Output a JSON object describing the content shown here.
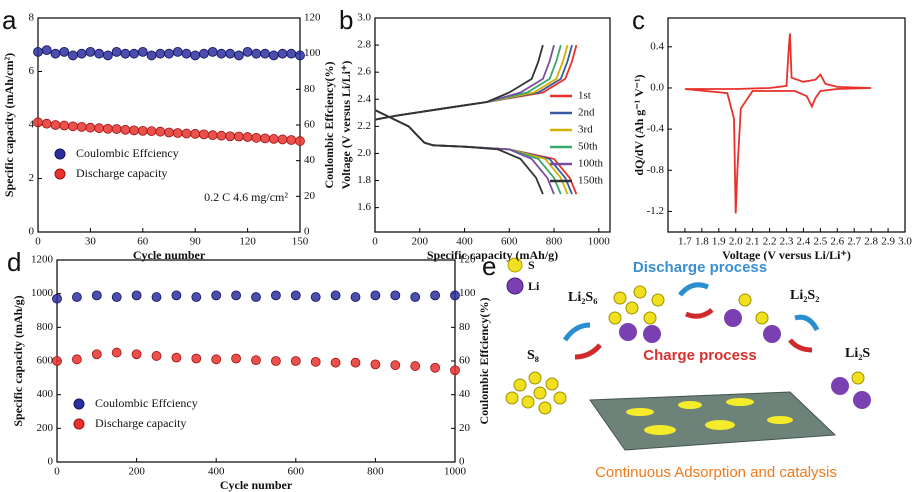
{
  "chart_data": [
    {
      "type": "scatter",
      "panel_label": "a",
      "xlabel": "Cycle number",
      "ylabel": "Specific capacity (mAh/cm²)",
      "y2label": "Coulombic Effciency(%)",
      "annotation": "0.2 C    4.6 mg/cm²",
      "legend": "lower left",
      "x": [
        0,
        5,
        10,
        15,
        20,
        25,
        30,
        35,
        40,
        45,
        50,
        55,
        60,
        65,
        70,
        75,
        80,
        85,
        90,
        95,
        100,
        105,
        110,
        115,
        120,
        125,
        130,
        135,
        140,
        145,
        150
      ],
      "series": [
        {
          "name": "Coulombic Effciency",
          "color": "#2b2f9e",
          "axis": "y2",
          "values": [
            101,
            102,
            100,
            101,
            99,
            100,
            101,
            100,
            99,
            101,
            100,
            100,
            101,
            99,
            100,
            100,
            101,
            100,
            99,
            100,
            101,
            100,
            100,
            99,
            101,
            100,
            100,
            99,
            100,
            100,
            99
          ]
        },
        {
          "name": "Discharge capacity",
          "color": "#e8322d",
          "values": [
            4.1,
            4.05,
            4.0,
            3.98,
            3.95,
            3.93,
            3.9,
            3.88,
            3.86,
            3.85,
            3.82,
            3.8,
            3.78,
            3.77,
            3.75,
            3.72,
            3.7,
            3.68,
            3.67,
            3.65,
            3.62,
            3.6,
            3.58,
            3.57,
            3.55,
            3.52,
            3.5,
            3.48,
            3.46,
            3.44,
            3.4
          ]
        }
      ],
      "xlim": [
        0,
        150
      ],
      "xticks": [
        0,
        30,
        60,
        90,
        120,
        150
      ],
      "ylim": [
        0,
        8
      ],
      "yticks": [
        0,
        2,
        4,
        6,
        8
      ],
      "y2lim": [
        0,
        120
      ],
      "y2ticks": [
        0,
        20,
        40,
        60,
        80,
        100,
        120
      ]
    },
    {
      "type": "line",
      "panel_label": "b",
      "xlabel": "Specific capacity (mAh/g)",
      "ylabel": "Voltage (V versus Li/Li⁺)",
      "legend": "right",
      "series": [
        {
          "name": "1st",
          "color": "#e8312a",
          "x": [
            0,
            50,
            150,
            220,
            260,
            400,
            600,
            800,
            870,
            900,
            null,
            0,
            100,
            300,
            500,
            750,
            850,
            880,
            900
          ],
          "values": [
            2.32,
            2.28,
            2.2,
            2.08,
            2.06,
            2.05,
            2.03,
            1.96,
            1.82,
            1.7,
            null,
            2.25,
            2.28,
            2.33,
            2.38,
            2.45,
            2.55,
            2.68,
            2.8
          ]
        },
        {
          "name": "2nd",
          "color": "#3a5ba0",
          "x": [
            0,
            50,
            150,
            220,
            260,
            400,
            600,
            780,
            850,
            880,
            null,
            0,
            100,
            300,
            500,
            730,
            830,
            860,
            880
          ],
          "values": [
            2.32,
            2.28,
            2.2,
            2.08,
            2.06,
            2.05,
            2.03,
            1.96,
            1.82,
            1.7,
            null,
            2.25,
            2.28,
            2.33,
            2.38,
            2.45,
            2.55,
            2.68,
            2.8
          ]
        },
        {
          "name": "3rd",
          "color": "#d4b000",
          "x": [
            0,
            50,
            150,
            220,
            260,
            400,
            600,
            760,
            830,
            860,
            null,
            0,
            100,
            300,
            500,
            710,
            810,
            840,
            860
          ],
          "values": [
            2.32,
            2.28,
            2.2,
            2.08,
            2.06,
            2.05,
            2.03,
            1.96,
            1.82,
            1.7,
            null,
            2.25,
            2.28,
            2.33,
            2.38,
            2.45,
            2.55,
            2.68,
            2.8
          ]
        },
        {
          "name": "50th",
          "color": "#3aa86b",
          "x": [
            0,
            50,
            150,
            220,
            260,
            400,
            600,
            730,
            800,
            830,
            null,
            0,
            100,
            300,
            500,
            680,
            780,
            810,
            830
          ],
          "values": [
            2.32,
            2.28,
            2.2,
            2.08,
            2.06,
            2.05,
            2.03,
            1.96,
            1.82,
            1.7,
            null,
            2.25,
            2.28,
            2.33,
            2.38,
            2.45,
            2.55,
            2.68,
            2.8
          ]
        },
        {
          "name": "100th",
          "color": "#7a4fa0",
          "x": [
            0,
            50,
            150,
            220,
            260,
            400,
            600,
            700,
            770,
            800,
            null,
            0,
            100,
            300,
            500,
            650,
            750,
            780,
            800
          ],
          "values": [
            2.32,
            2.28,
            2.2,
            2.08,
            2.06,
            2.05,
            2.03,
            1.96,
            1.82,
            1.7,
            null,
            2.25,
            2.28,
            2.33,
            2.38,
            2.45,
            2.55,
            2.68,
            2.8
          ]
        },
        {
          "name": "150th",
          "color": "#333333",
          "x": [
            0,
            50,
            150,
            220,
            260,
            400,
            550,
            650,
            720,
            750,
            null,
            0,
            100,
            300,
            500,
            600,
            700,
            730,
            750
          ],
          "values": [
            2.32,
            2.28,
            2.2,
            2.08,
            2.06,
            2.05,
            2.03,
            1.96,
            1.82,
            1.7,
            null,
            2.25,
            2.28,
            2.33,
            2.38,
            2.45,
            2.55,
            2.68,
            2.8
          ]
        }
      ],
      "xlim": [
        0,
        1050
      ],
      "xticks": [
        0,
        200,
        400,
        600,
        800,
        1000
      ],
      "ylim": [
        1.42,
        3.0
      ],
      "yticks": [
        1.6,
        1.8,
        {
          "value": 2,
          "label": "2.0"
        },
        2.2,
        2.4,
        2.6,
        2.8,
        {
          "value": 3,
          "label": "3.0"
        }
      ]
    },
    {
      "type": "line",
      "panel_label": "c",
      "xlabel": "Voltage (V versus Li/Li⁺)",
      "ylabel": "dQ/dV (Ah g⁻¹ V⁻¹)",
      "series": [
        {
          "color": "#e8312a",
          "x": [
            2.8,
            2.6,
            2.5,
            2.47,
            2.45,
            2.42,
            2.35,
            2.3,
            2.1,
            2.03,
            2.01,
            2.0,
            1.99,
            1.95,
            1.7,
            null,
            1.7,
            2.0,
            2.2,
            2.3,
            2.31,
            2.32,
            2.33,
            2.4,
            2.47,
            2.5,
            2.53,
            2.6,
            2.8
          ],
          "values": [
            0,
            -0.01,
            -0.03,
            -0.1,
            -0.18,
            -0.08,
            -0.03,
            -0.03,
            -0.03,
            -0.2,
            -0.8,
            -1.22,
            -0.3,
            -0.05,
            -0.01,
            null,
            -0.01,
            -0.01,
            0,
            0.02,
            0.3,
            0.53,
            0.1,
            0.06,
            0.08,
            0.13,
            0.04,
            0.01,
            0
          ]
        }
      ],
      "xlim": [
        1.6,
        3.0
      ],
      "xticks": [
        1.7,
        1.8,
        1.9,
        {
          "value": 2,
          "label": "2.0"
        },
        2.1,
        2.2,
        2.3,
        2.4,
        2.5,
        2.6,
        2.7,
        2.8,
        2.9,
        {
          "value": 3,
          "label": "3.0"
        }
      ],
      "ylim": [
        -1.4,
        0.68
      ],
      "yticks": [
        0.4,
        {
          "value": 0,
          "label": "0.0"
        },
        -0.4,
        -0.8,
        -1.2
      ]
    },
    {
      "type": "scatter",
      "panel_label": "d",
      "xlabel": "Cycle number",
      "ylabel": "Specific capacity (mAh/g)",
      "y2label": "Coulombic Effciency(%)",
      "legend": "lower left",
      "x": [
        0,
        50,
        100,
        150,
        200,
        250,
        300,
        350,
        400,
        450,
        500,
        550,
        600,
        650,
        700,
        750,
        800,
        850,
        900,
        950,
        1000
      ],
      "series": [
        {
          "name": "Coulombic Effciency",
          "color": "#2b2f9e",
          "axis": "y2",
          "values": [
            97,
            98,
            99,
            98,
            99,
            98,
            99,
            98,
            99,
            99,
            98,
            99,
            99,
            98,
            99,
            98,
            99,
            99,
            98,
            99,
            99
          ]
        },
        {
          "name": "Discharge capacity",
          "color": "#e8322d",
          "values": [
            600,
            610,
            640,
            650,
            640,
            630,
            620,
            615,
            610,
            615,
            605,
            600,
            600,
            595,
            590,
            590,
            580,
            575,
            570,
            560,
            545
          ]
        }
      ],
      "xlim": [
        0,
        1000
      ],
      "xticks": [
        0,
        200,
        400,
        600,
        800,
        1000
      ],
      "ylim": [
        0,
        1200
      ],
      "yticks": [
        0,
        200,
        400,
        600,
        800,
        1000,
        1200
      ],
      "y2lim": [
        0,
        120
      ],
      "y2ticks": [
        0,
        20,
        40,
        60,
        80,
        100,
        120
      ]
    }
  ],
  "diagram": {
    "panel_label": "e",
    "legend_s": "S",
    "legend_li": "Li",
    "discharge": "Discharge process",
    "charge": "Charge process",
    "species": [
      "S₈",
      "Li₂S₆",
      "Li₂S₂",
      "Li₂S"
    ],
    "caption": "Continuous Adsorption and catalysis"
  }
}
